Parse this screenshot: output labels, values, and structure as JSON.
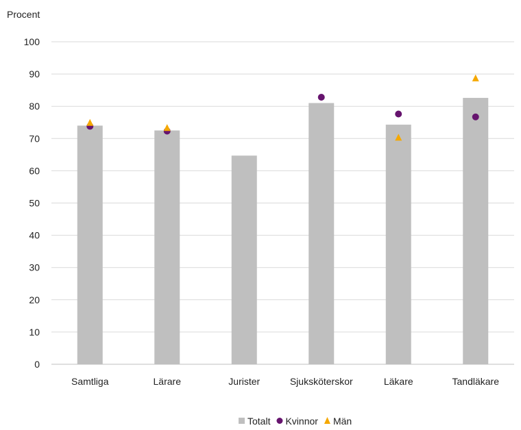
{
  "chart_data": {
    "type": "bar",
    "ylabel": "Procent",
    "xlabel": "",
    "ylim": [
      0,
      100
    ],
    "yticks": [
      0,
      10,
      20,
      30,
      40,
      50,
      60,
      70,
      80,
      90,
      100
    ],
    "grid": true,
    "legend_position": "bottom",
    "categories": [
      "Samtliga",
      "Lärare",
      "Jurister",
      "Sjuksköterskor",
      "Läkare",
      "Tandläkare"
    ],
    "series": [
      {
        "name": "Totalt",
        "kind": "bar",
        "marker": "square",
        "color": "#bfbfbf",
        "values": [
          74,
          72.5,
          64.7,
          81,
          74.3,
          82.6
        ]
      },
      {
        "name": "Kvinnor",
        "kind": "point",
        "marker": "circle",
        "color": "#66146e",
        "values": [
          73.8,
          72.3,
          null,
          82.8,
          77.6,
          76.7
        ]
      },
      {
        "name": "Män",
        "kind": "point",
        "marker": "triangle",
        "color": "#f5a800",
        "values": [
          74.9,
          73.3,
          null,
          null,
          70.3,
          88.7
        ]
      }
    ]
  }
}
